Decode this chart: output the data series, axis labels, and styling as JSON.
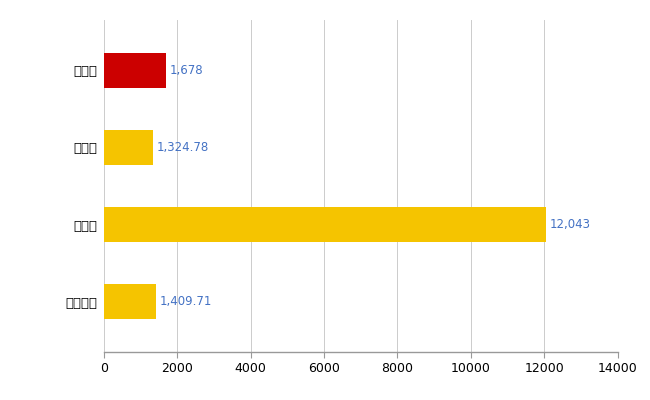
{
  "categories": [
    "朝霄市",
    "県平均",
    "県最大",
    "全国平均"
  ],
  "values": [
    1678,
    1324.78,
    12043,
    1409.71
  ],
  "bar_colors": [
    "#cc0000",
    "#f5c400",
    "#f5c400",
    "#f5c400"
  ],
  "labels": [
    "1,678",
    "1,324.78",
    "12,043",
    "1,409.71"
  ],
  "xlim": [
    0,
    14000
  ],
  "xticks": [
    0,
    2000,
    4000,
    6000,
    8000,
    10000,
    12000,
    14000
  ],
  "label_color": "#4472c4",
  "grid_color": "#cccccc",
  "background_color": "#ffffff",
  "bar_height": 0.45,
  "label_fontsize": 8.5,
  "tick_fontsize": 9,
  "category_fontsize": 9.5
}
